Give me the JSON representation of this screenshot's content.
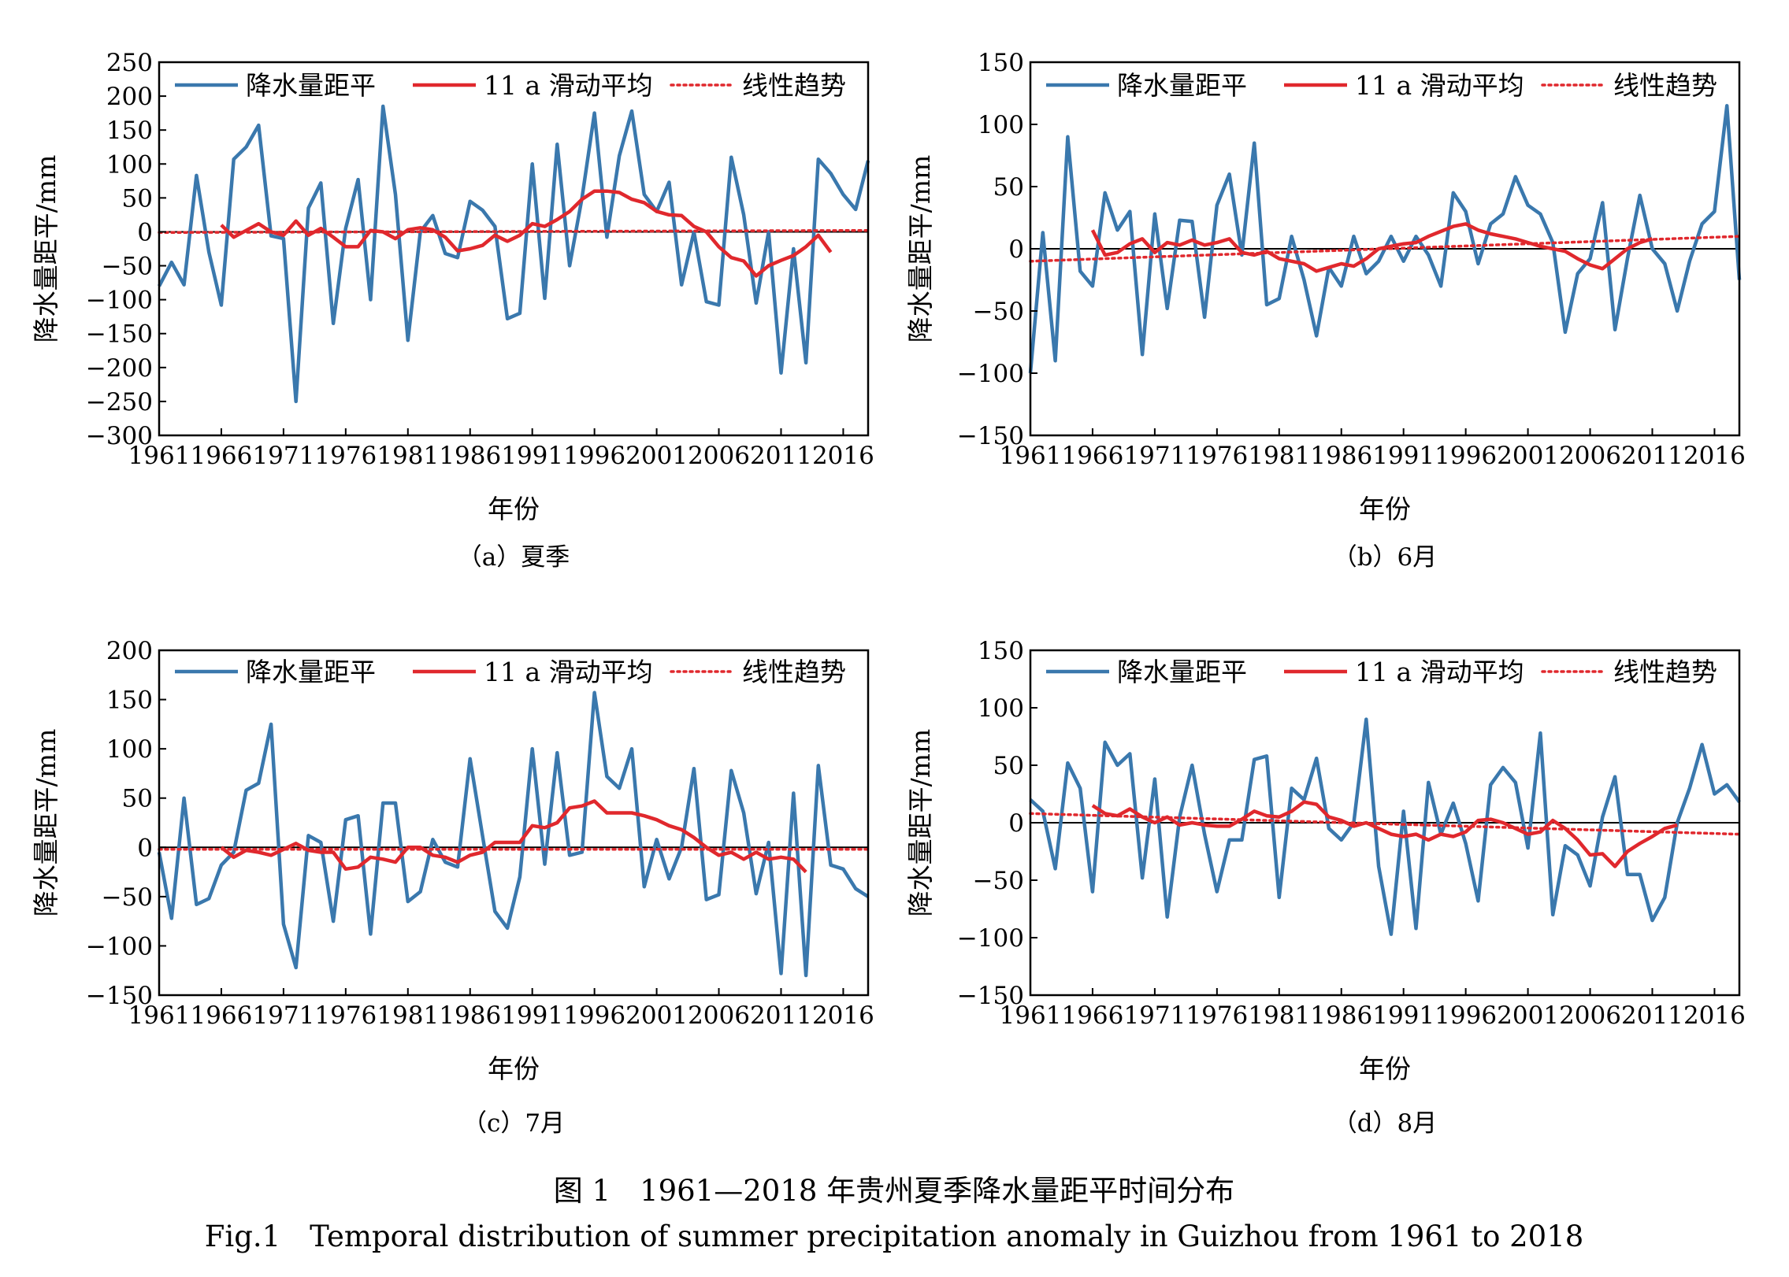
{
  "figure": {
    "caption_cn": "图 1　1961—2018 年贵州夏季降水量距平时间分布",
    "caption_en": "Fig.1　Temporal distribution of summer precipitation anomaly in Guizhou from 1961 to 2018"
  },
  "colors": {
    "anomaly": "#3a78ad",
    "moving_avg": "#e0282d",
    "trend": "#e0282d",
    "zero_line": "#000000"
  },
  "chart_data": [
    {
      "type": "line",
      "caption": "（a）夏季",
      "xlabel": "年份",
      "ylabel": "降水量距平/mm",
      "xlim": [
        1961,
        2018
      ],
      "ylim": [
        -300,
        250
      ],
      "yticks": [
        250,
        200,
        150,
        100,
        50,
        0,
        -50,
        -100,
        -150,
        -200,
        -250,
        -300
      ],
      "xticks": [
        1961,
        1966,
        1971,
        1976,
        1981,
        1986,
        1991,
        1996,
        2001,
        2006,
        2011,
        2016
      ],
      "legend": [
        "降水量距平",
        "11 a 滑动平均",
        "线性趋势"
      ],
      "series": [
        {
          "name": "降水量距平",
          "style": "solid-blue",
          "x_start": 1961,
          "values": [
            -80,
            -45,
            -78,
            83,
            -30,
            -108,
            107,
            125,
            157,
            -6,
            -10,
            -250,
            35,
            72,
            -135,
            5,
            77,
            -100,
            185,
            55,
            -160,
            0,
            24,
            -32,
            -38,
            45,
            32,
            8,
            -128,
            -120,
            100,
            -98,
            129,
            -50,
            50,
            175,
            -8,
            112,
            178,
            55,
            30,
            73,
            -78,
            0,
            -103,
            -108,
            110,
            25,
            -105,
            0,
            -208,
            -25,
            -193,
            107,
            86,
            55,
            33,
            105
          ]
        },
        {
          "name": "11 a 滑动平均",
          "style": "solid-red",
          "x_start": 1966,
          "values": [
            10,
            -8,
            2,
            12,
            0,
            -5,
            16,
            -5,
            5,
            -8,
            -22,
            -22,
            2,
            0,
            -10,
            3,
            6,
            3,
            -8,
            -28,
            -25,
            -20,
            -5,
            -14,
            -5,
            12,
            8,
            18,
            30,
            48,
            60,
            60,
            58,
            48,
            43,
            30,
            25,
            24,
            8,
            0,
            -22,
            -38,
            -43,
            -65,
            -50,
            -42,
            -35,
            -22,
            -5,
            -30
          ]
        },
        {
          "name": "线性趋势",
          "style": "dotted-red",
          "x": [
            1961,
            2018
          ],
          "values": [
            -1,
            2
          ]
        }
      ]
    },
    {
      "type": "line",
      "caption": "（b）6月",
      "xlabel": "年份",
      "ylabel": "降水量距平/mm",
      "xlim": [
        1961,
        2018
      ],
      "ylim": [
        -150,
        150
      ],
      "yticks": [
        150,
        100,
        50,
        0,
        -50,
        -100,
        -150
      ],
      "xticks": [
        1961,
        1966,
        1971,
        1976,
        1981,
        1986,
        1991,
        1996,
        2001,
        2006,
        2011,
        2016
      ],
      "legend": [
        "降水量距平",
        "11 a 滑动平均",
        "线性趋势"
      ],
      "series": [
        {
          "name": "降水量距平",
          "style": "solid-blue",
          "x_start": 1961,
          "values": [
            -100,
            13,
            -90,
            90,
            -18,
            -30,
            45,
            15,
            30,
            -85,
            28,
            -48,
            23,
            22,
            -55,
            35,
            60,
            -5,
            85,
            -45,
            -40,
            10,
            -25,
            -70,
            -15,
            -30,
            10,
            -20,
            -10,
            10,
            -10,
            10,
            -5,
            -30,
            45,
            30,
            -12,
            20,
            28,
            58,
            35,
            28,
            5,
            -67,
            -20,
            -8,
            37,
            -65,
            -8,
            43,
            0,
            -12,
            -50,
            -10,
            20,
            30,
            115,
            -25
          ]
        },
        {
          "name": "11 a 滑动平均",
          "style": "solid-red",
          "x_start": 1966,
          "values": [
            15,
            -5,
            -3,
            4,
            8,
            -3,
            5,
            3,
            7,
            3,
            5,
            8,
            -3,
            -5,
            -2,
            -8,
            -10,
            -12,
            -18,
            -15,
            -12,
            -14,
            -8,
            0,
            2,
            4,
            5,
            10,
            14,
            18,
            20,
            15,
            12,
            10,
            8,
            5,
            2,
            0,
            -2,
            -8,
            -13,
            -16,
            -8,
            0,
            5,
            8
          ]
        },
        {
          "name": "线性趋势",
          "style": "dotted-red",
          "x": [
            1961,
            2018
          ],
          "values": [
            -10,
            10
          ]
        }
      ]
    },
    {
      "type": "line",
      "caption": "（c）7月",
      "xlabel": "年份",
      "ylabel": "降水量距平/mm",
      "xlim": [
        1961,
        2018
      ],
      "ylim": [
        -150,
        200
      ],
      "yticks": [
        200,
        150,
        100,
        50,
        0,
        -50,
        -100,
        -150
      ],
      "xticks": [
        1961,
        1966,
        1971,
        1976,
        1981,
        1986,
        1991,
        1996,
        2001,
        2006,
        2011,
        2016
      ],
      "legend": [
        "降水量距平",
        "11 a 滑动平均",
        "线性趋势"
      ],
      "series": [
        {
          "name": "降水量距平",
          "style": "solid-blue",
          "x_start": 1961,
          "values": [
            -5,
            -72,
            50,
            -58,
            -52,
            -18,
            -5,
            58,
            65,
            125,
            -78,
            -122,
            12,
            5,
            -75,
            28,
            32,
            -88,
            45,
            45,
            -55,
            -45,
            8,
            -15,
            -20,
            90,
            12,
            -65,
            -82,
            -30,
            100,
            -17,
            96,
            -8,
            -5,
            157,
            72,
            60,
            100,
            -40,
            8,
            -32,
            0,
            80,
            -53,
            -48,
            78,
            35,
            -47,
            5,
            -128,
            55,
            -130,
            83,
            -18,
            -22,
            -42,
            -50
          ]
        },
        {
          "name": "11 a 滑动平均",
          "style": "solid-red",
          "x_start": 1966,
          "values": [
            0,
            -10,
            -3,
            -5,
            -8,
            -2,
            4,
            -3,
            -5,
            -5,
            -22,
            -20,
            -10,
            -12,
            -15,
            0,
            0,
            -8,
            -10,
            -15,
            -8,
            -5,
            5,
            5,
            5,
            22,
            20,
            25,
            40,
            42,
            47,
            35,
            35,
            35,
            32,
            28,
            22,
            18,
            10,
            0,
            -8,
            -5,
            -12,
            -5,
            -12,
            -10,
            -12,
            -25
          ]
        },
        {
          "name": "线性趋势",
          "style": "dotted-red",
          "x": [
            1961,
            2018
          ],
          "values": [
            -2,
            -2
          ]
        }
      ]
    },
    {
      "type": "line",
      "caption": "（d）8月",
      "xlabel": "年份",
      "ylabel": "降水量距平/mm",
      "xlim": [
        1961,
        2018
      ],
      "ylim": [
        -150,
        150
      ],
      "yticks": [
        150,
        100,
        50,
        0,
        -50,
        -100,
        -150
      ],
      "xticks": [
        1961,
        1966,
        1971,
        1976,
        1981,
        1986,
        1991,
        1996,
        2001,
        2006,
        2011,
        2016
      ],
      "legend": [
        "降水量距平",
        "11 a 滑动平均",
        "线性趋势"
      ],
      "series": [
        {
          "name": "降水量距平",
          "style": "solid-blue",
          "x_start": 1961,
          "values": [
            20,
            10,
            -40,
            52,
            30,
            -60,
            70,
            50,
            60,
            -48,
            38,
            -82,
            5,
            50,
            -10,
            -60,
            -15,
            -15,
            55,
            58,
            -65,
            30,
            20,
            56,
            -5,
            -15,
            0,
            90,
            -38,
            -97,
            10,
            -92,
            35,
            -10,
            17,
            -18,
            -68,
            33,
            48,
            35,
            -22,
            78,
            -80,
            -20,
            -28,
            -55,
            5,
            40,
            -45,
            -45,
            -85,
            -65,
            0,
            30,
            68,
            25,
            33,
            18
          ]
        },
        {
          "name": "11 a 滑动平均",
          "style": "solid-red",
          "x_start": 1966,
          "values": [
            15,
            8,
            6,
            12,
            5,
            0,
            5,
            -2,
            0,
            -2,
            -3,
            -3,
            3,
            10,
            6,
            5,
            10,
            18,
            16,
            5,
            2,
            -3,
            0,
            -5,
            -10,
            -12,
            -10,
            -15,
            -10,
            -12,
            -8,
            2,
            3,
            0,
            -5,
            -10,
            -8,
            2,
            -5,
            -15,
            -28,
            -27,
            -38,
            -25,
            -18,
            -12,
            -5,
            -2
          ]
        },
        {
          "name": "线性趋势",
          "style": "dotted-red",
          "x": [
            1961,
            2018
          ],
          "values": [
            8,
            -10
          ]
        }
      ]
    }
  ]
}
